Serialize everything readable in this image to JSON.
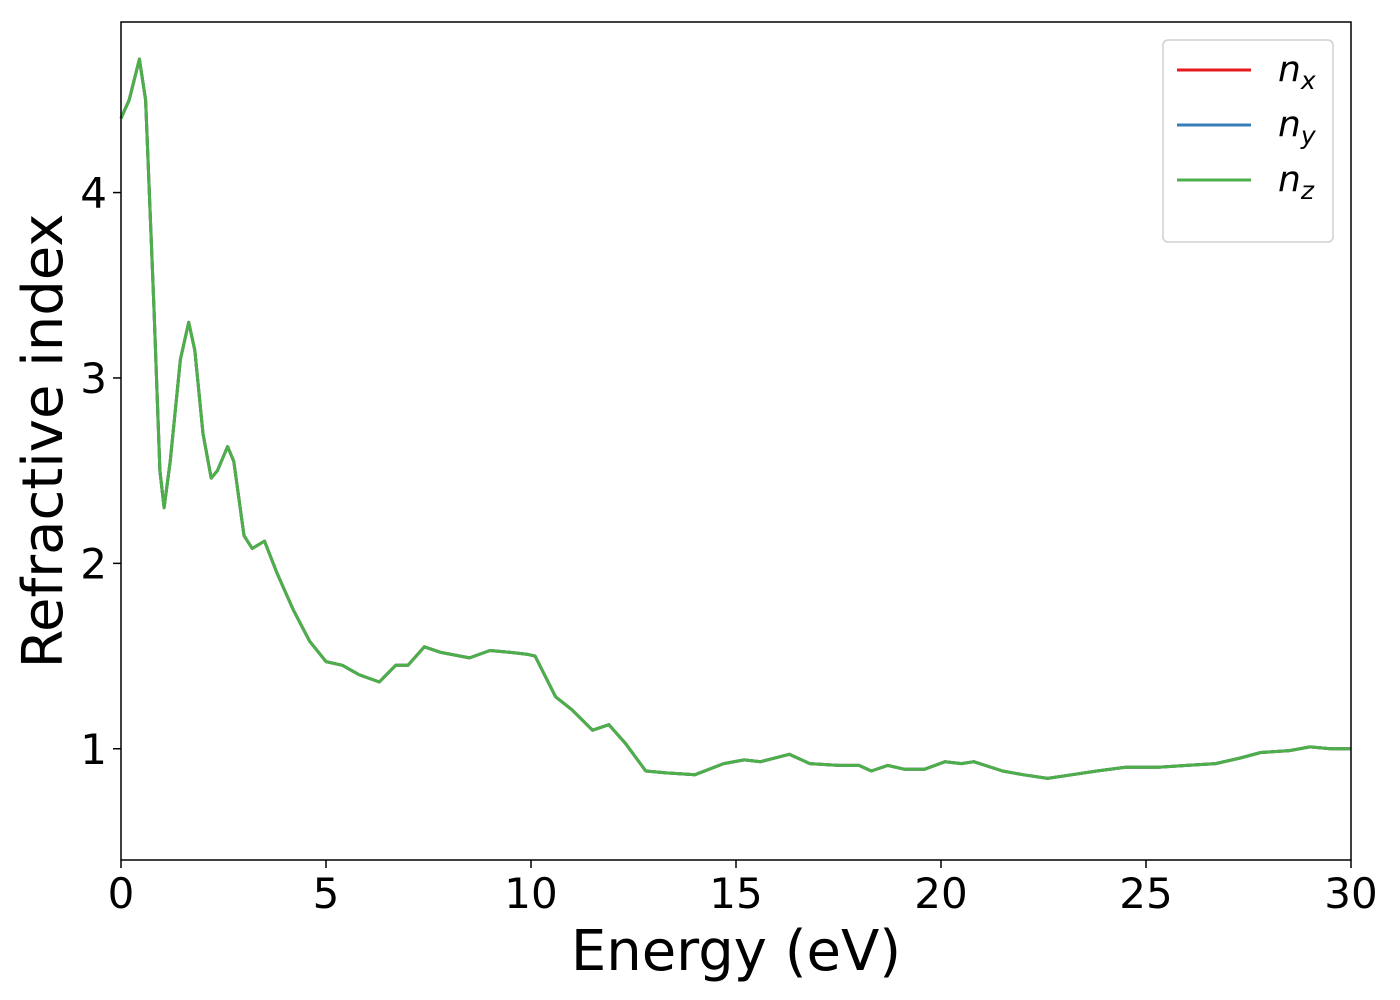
{
  "chart_data": {
    "type": "line",
    "x_label": "Energy (eV)",
    "y_label": "Refractive index",
    "x": [
      0,
      0.2,
      0.45,
      0.6,
      0.8,
      0.95,
      1.05,
      1.2,
      1.45,
      1.65,
      1.8,
      2.0,
      2.2,
      2.35,
      2.6,
      2.75,
      3.0,
      3.2,
      3.5,
      3.8,
      4.2,
      4.6,
      5.0,
      5.4,
      5.8,
      6.3,
      6.7,
      7.0,
      7.4,
      7.8,
      8.5,
      9.0,
      9.5,
      9.9,
      10.1,
      10.6,
      11.0,
      11.5,
      11.9,
      12.3,
      12.8,
      13.3,
      14.0,
      14.7,
      15.2,
      15.6,
      16.3,
      16.8,
      17.5,
      18.0,
      18.3,
      18.7,
      19.1,
      19.6,
      20.1,
      20.5,
      20.8,
      21.5,
      22.0,
      22.6,
      23.2,
      23.8,
      24.5,
      25.3,
      26.0,
      26.7,
      27.3,
      27.8,
      28.5,
      29.0,
      29.5,
      30
    ],
    "series": [
      {
        "name": "nx",
        "color": "#e41a1c",
        "values": [
          4.4,
          4.5,
          4.72,
          4.5,
          3.4,
          2.5,
          2.3,
          2.55,
          3.1,
          3.3,
          3.15,
          2.7,
          2.46,
          2.5,
          2.63,
          2.55,
          2.15,
          2.08,
          2.12,
          1.95,
          1.75,
          1.58,
          1.47,
          1.45,
          1.4,
          1.36,
          1.45,
          1.45,
          1.55,
          1.52,
          1.49,
          1.53,
          1.52,
          1.51,
          1.5,
          1.28,
          1.21,
          1.1,
          1.13,
          1.03,
          0.88,
          0.87,
          0.86,
          0.92,
          0.94,
          0.93,
          0.97,
          0.92,
          0.91,
          0.91,
          0.88,
          0.91,
          0.89,
          0.89,
          0.93,
          0.92,
          0.93,
          0.88,
          0.86,
          0.84,
          0.86,
          0.88,
          0.9,
          0.9,
          0.91,
          0.92,
          0.95,
          0.98,
          0.99,
          1.01,
          1.0,
          1.0
        ]
      },
      {
        "name": "ny",
        "color": "#377eb8",
        "values": [
          4.4,
          4.5,
          4.72,
          4.5,
          3.4,
          2.5,
          2.3,
          2.55,
          3.1,
          3.3,
          3.15,
          2.7,
          2.46,
          2.5,
          2.63,
          2.55,
          2.15,
          2.08,
          2.12,
          1.95,
          1.75,
          1.58,
          1.47,
          1.45,
          1.4,
          1.36,
          1.45,
          1.45,
          1.55,
          1.52,
          1.49,
          1.53,
          1.52,
          1.51,
          1.5,
          1.28,
          1.21,
          1.1,
          1.13,
          1.03,
          0.88,
          0.87,
          0.86,
          0.92,
          0.94,
          0.93,
          0.97,
          0.92,
          0.91,
          0.91,
          0.88,
          0.91,
          0.89,
          0.89,
          0.93,
          0.92,
          0.93,
          0.88,
          0.86,
          0.84,
          0.86,
          0.88,
          0.9,
          0.9,
          0.91,
          0.92,
          0.95,
          0.98,
          0.99,
          1.01,
          1.0,
          1.0
        ]
      },
      {
        "name": "nz",
        "color": "#4daf4a",
        "values": [
          4.4,
          4.5,
          4.72,
          4.5,
          3.4,
          2.5,
          2.3,
          2.55,
          3.1,
          3.3,
          3.15,
          2.7,
          2.46,
          2.5,
          2.63,
          2.55,
          2.15,
          2.08,
          2.12,
          1.95,
          1.75,
          1.58,
          1.47,
          1.45,
          1.4,
          1.36,
          1.45,
          1.45,
          1.55,
          1.52,
          1.49,
          1.53,
          1.52,
          1.51,
          1.5,
          1.28,
          1.21,
          1.1,
          1.13,
          1.03,
          0.88,
          0.87,
          0.86,
          0.92,
          0.94,
          0.93,
          0.97,
          0.92,
          0.91,
          0.91,
          0.88,
          0.91,
          0.89,
          0.89,
          0.93,
          0.92,
          0.93,
          0.88,
          0.86,
          0.84,
          0.86,
          0.88,
          0.9,
          0.9,
          0.91,
          0.92,
          0.95,
          0.98,
          0.99,
          1.01,
          1.0,
          1.0
        ]
      }
    ],
    "xlim": [
      0,
      30
    ],
    "xticks": [
      0,
      5,
      10,
      15,
      20,
      25,
      30
    ],
    "ylim": [
      0.4,
      4.92
    ],
    "yticks": [
      1,
      2,
      3,
      4
    ],
    "legend": "upper right",
    "grid": false
  }
}
